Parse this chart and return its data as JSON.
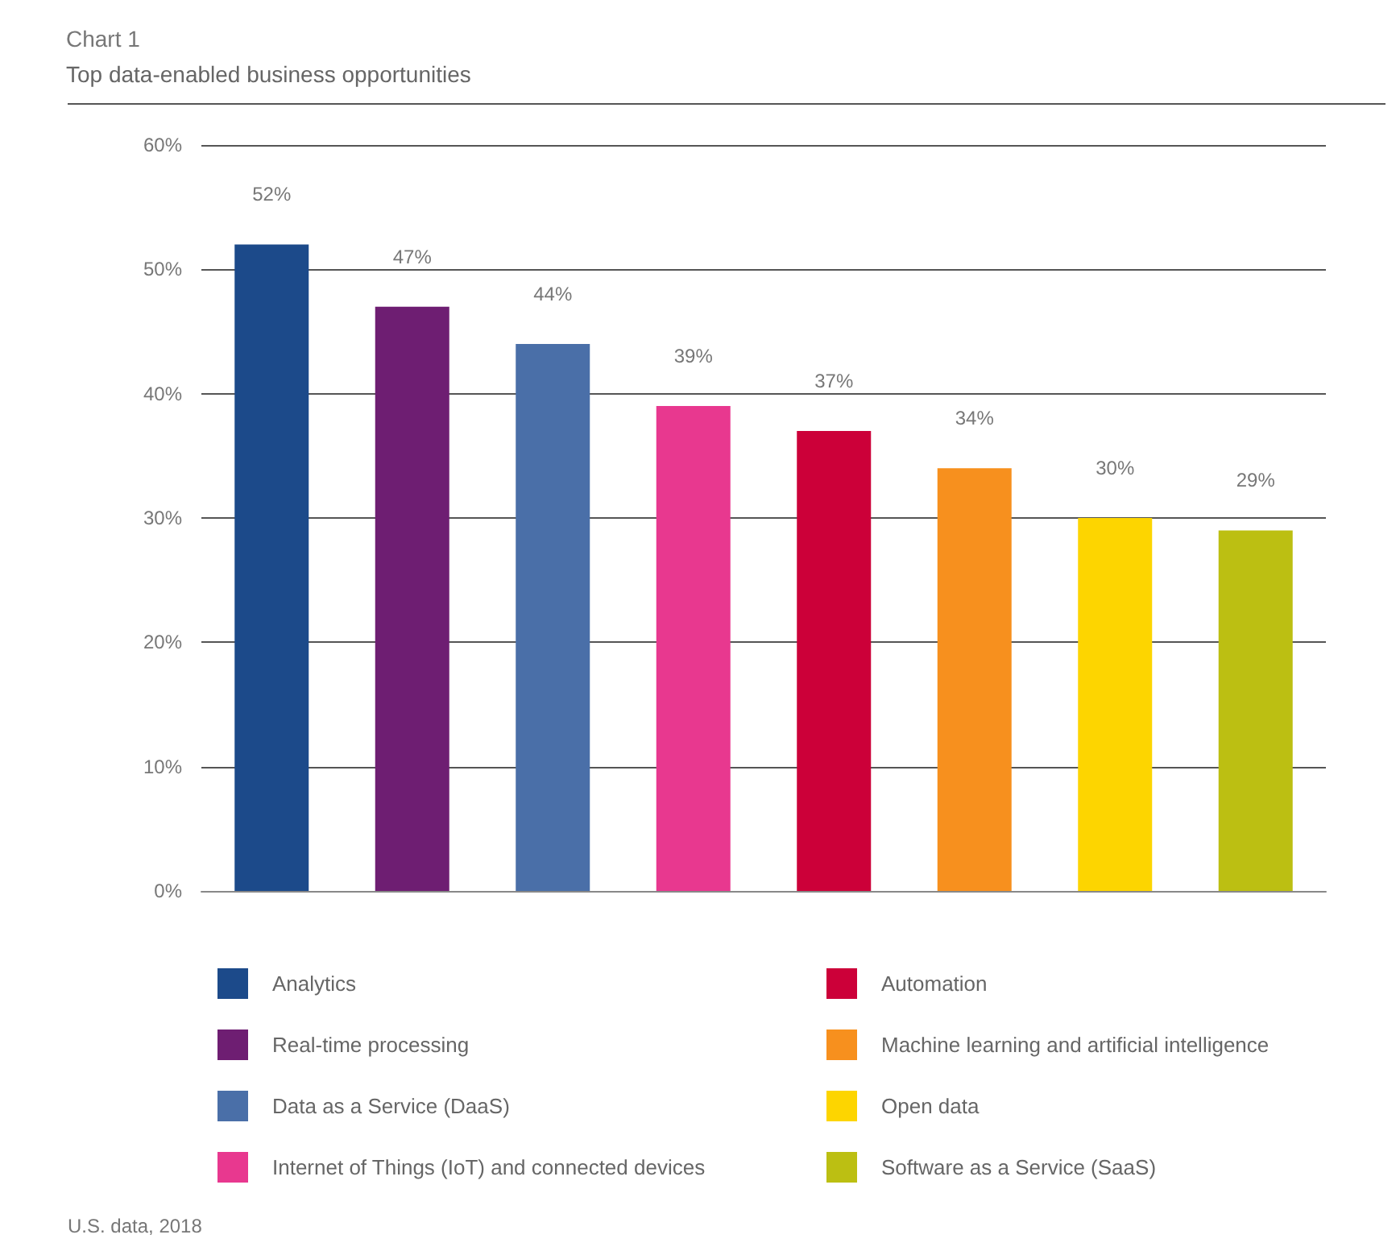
{
  "chart_data": {
    "type": "bar",
    "title": "Chart 1",
    "subtitle": "Top data-enabled business opportunities",
    "categories": [
      null,
      null,
      null,
      null,
      null,
      null,
      null,
      null
    ],
    "series": [
      {
        "name": "Analytics",
        "color": "#1c4a8a",
        "values": [
          52,
          null,
          null,
          null,
          null,
          null,
          null,
          null
        ],
        "value_labels": [
          "52%",
          null,
          null,
          null,
          null,
          null,
          null,
          null
        ]
      },
      {
        "name": "Real-time processing",
        "color": "#6e1e72",
        "values": [
          null,
          47,
          null,
          null,
          null,
          null,
          null,
          null
        ],
        "value_labels": [
          null,
          "47%",
          null,
          null,
          null,
          null,
          null,
          null
        ]
      },
      {
        "name": "Data as a Service (DaaS)",
        "color": "#4a6fa8",
        "values": [
          null,
          null,
          44,
          null,
          null,
          null,
          null,
          null
        ],
        "value_labels": [
          null,
          null,
          "44%",
          null,
          null,
          null,
          null,
          null
        ]
      },
      {
        "name": "Internet of Things (IoT) and connected devices",
        "color": "#e8388f",
        "values": [
          null,
          null,
          null,
          39,
          null,
          null,
          null,
          null
        ],
        "value_labels": [
          null,
          null,
          null,
          "39%",
          null,
          null,
          null,
          null
        ]
      },
      {
        "name": "Automation",
        "color": "#cc0039",
        "values": [
          null,
          null,
          null,
          null,
          37,
          null,
          null,
          null
        ],
        "value_labels": [
          null,
          null,
          null,
          null,
          "37%",
          null,
          null,
          null
        ]
      },
      {
        "name": "Machine learning and artificial intelligence",
        "color": "#f7901e",
        "values": [
          null,
          null,
          null,
          null,
          null,
          34,
          null,
          null
        ],
        "value_labels": [
          null,
          null,
          null,
          null,
          null,
          "34%",
          null,
          null
        ]
      },
      {
        "name": "Open data",
        "color": "#fdd500",
        "values": [
          null,
          null,
          null,
          null,
          null,
          null,
          30,
          null
        ],
        "value_labels": [
          null,
          null,
          null,
          null,
          null,
          null,
          "30%",
          null
        ]
      },
      {
        "name": "Software as a Service (SaaS)",
        "color": "#bcbf12",
        "values": [
          null,
          null,
          null,
          null,
          null,
          null,
          null,
          29
        ],
        "value_labels": [
          null,
          null,
          null,
          null,
          null,
          null,
          null,
          "29%"
        ]
      }
    ],
    "ylim": [
      0,
      60
    ],
    "yticks": [
      {
        "value": 0,
        "label": "0%"
      },
      {
        "value": 10,
        "label": "10%"
      },
      {
        "value": 20,
        "label": "20%"
      },
      {
        "value": 30,
        "label": "30%"
      },
      {
        "value": 40,
        "label": "40%"
      },
      {
        "value": 50,
        "label": "50%"
      },
      {
        "value": 60,
        "label": "60%"
      }
    ],
    "grid": "y",
    "legend": "bottom",
    "annotations": [
      "U.S. data, 2018"
    ]
  }
}
